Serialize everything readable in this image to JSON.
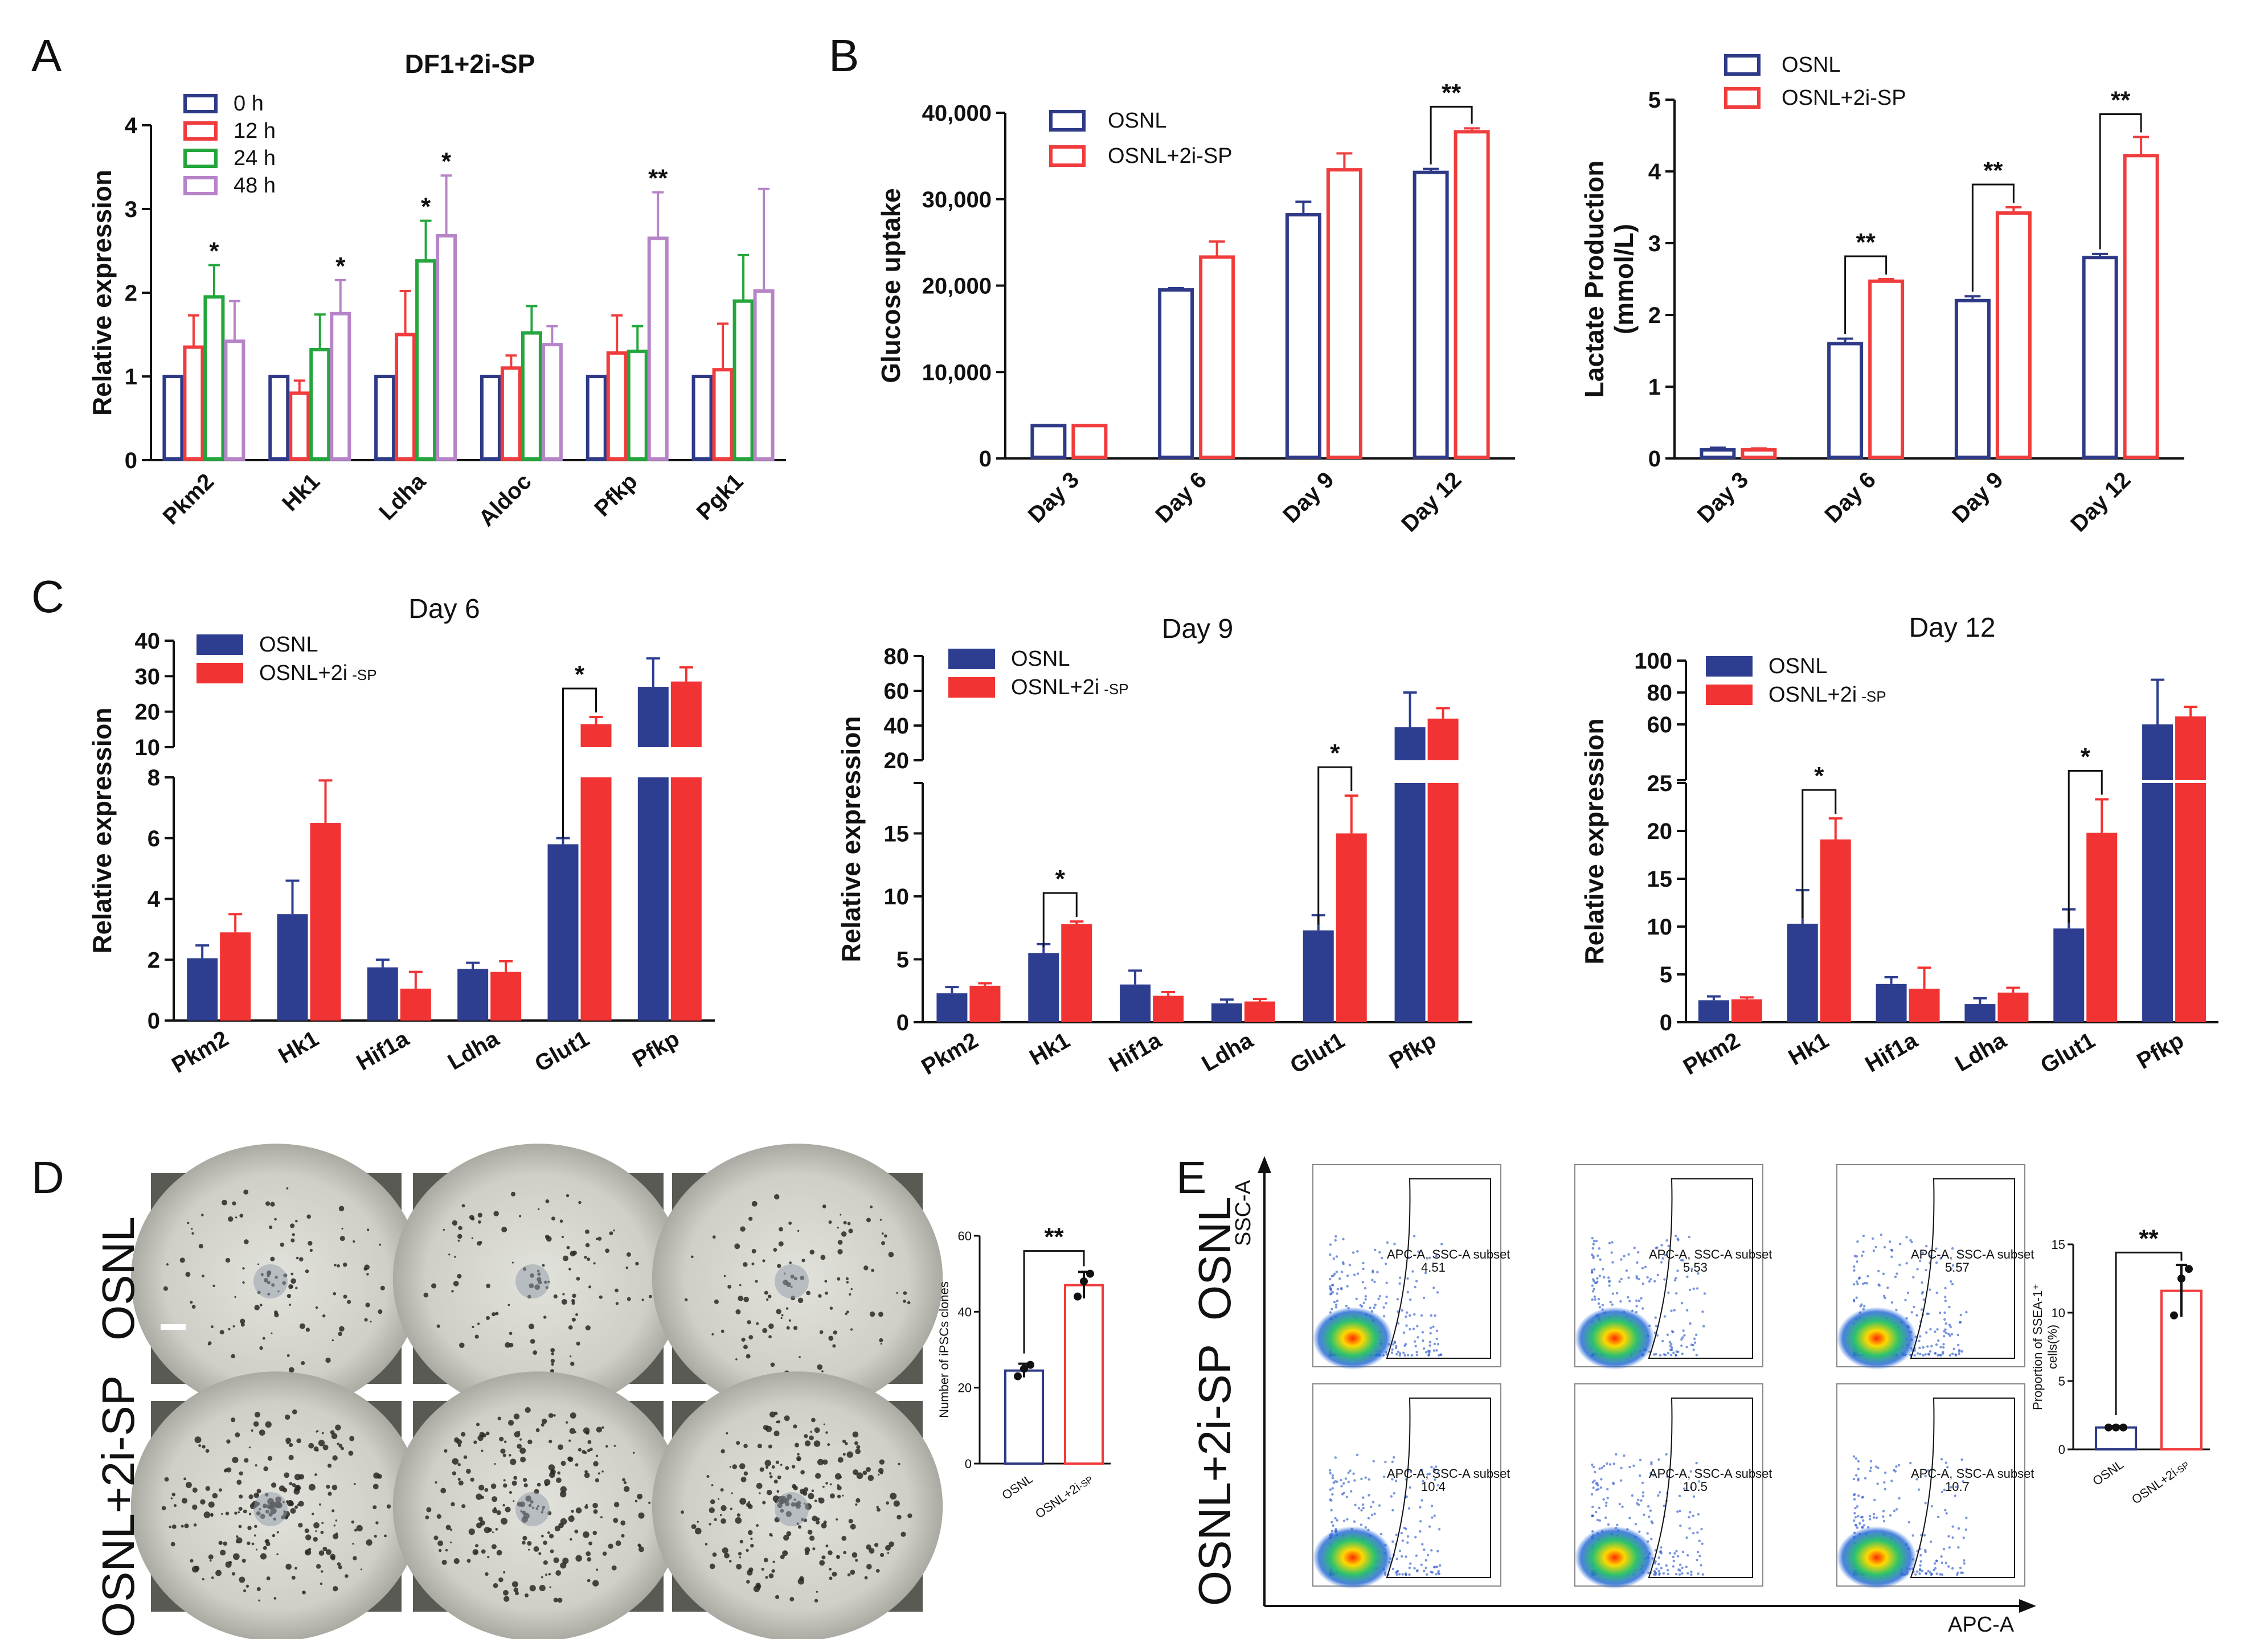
{
  "figure": {
    "panel_labels": [
      "A",
      "B",
      "C",
      "D",
      "E"
    ],
    "colors": {
      "blue": "#2e3a87",
      "red": "#f03c3c",
      "green": "#23a63c",
      "purple": "#b784c8",
      "bar_blue": "#2d3e91",
      "bar_red": "#f23333"
    }
  },
  "chart_data": [
    {
      "id": "A",
      "type": "bar",
      "title": "DF1+2i-SP",
      "ylabel": "Relative expression",
      "ylim": [
        0,
        4
      ],
      "yticks": [
        "0",
        "1",
        "2",
        "3",
        "4"
      ],
      "categories": [
        "Pkm2",
        "Hk1",
        "Ldha",
        "Aldoc",
        "Pfkp",
        "Pgk1"
      ],
      "series": [
        {
          "name": "0 h",
          "values": [
            1,
            1,
            1,
            1,
            1,
            1
          ],
          "errors": [
            0,
            0,
            0,
            0,
            0,
            0
          ],
          "style": "outline",
          "color": "#2e3a87"
        },
        {
          "name": "12 h",
          "values": [
            1.35,
            0.8,
            1.5,
            1.1,
            1.28,
            1.08
          ],
          "errors": [
            0.38,
            0.15,
            0.52,
            0.15,
            0.45,
            0.55
          ],
          "style": "outline",
          "color": "#f03c3c"
        },
        {
          "name": "24 h",
          "values": [
            1.95,
            1.32,
            2.38,
            1.52,
            1.3,
            1.9
          ],
          "errors": [
            0.38,
            0.42,
            0.48,
            0.32,
            0.3,
            0.55
          ],
          "style": "outline",
          "color": "#23a63c"
        },
        {
          "name": "48 h",
          "values": [
            1.42,
            1.75,
            2.68,
            1.38,
            2.65,
            2.02
          ],
          "errors": [
            0.48,
            0.4,
            0.72,
            0.22,
            0.55,
            1.22
          ],
          "style": "outline",
          "color": "#b784c8"
        }
      ],
      "annotations": [
        {
          "text": "*",
          "category": 0,
          "series": 2
        },
        {
          "text": "*",
          "category": 1,
          "series": 3
        },
        {
          "text": "*",
          "category": 2,
          "series": 2
        },
        {
          "text": "*",
          "category": 2,
          "series": 3
        },
        {
          "text": "**",
          "category": 4,
          "series": 3
        }
      ]
    },
    {
      "id": "B1",
      "type": "bar",
      "ylabel": "Glucose uptake",
      "ylim": [
        0,
        40000
      ],
      "yticks": [
        "0",
        "10,000",
        "20,000",
        "30,000",
        "40,000"
      ],
      "categories": [
        "Day 3",
        "Day 6",
        "Day 9",
        "Day 12"
      ],
      "series": [
        {
          "name": "OSNL",
          "values": [
            3800,
            19500,
            28200,
            33100
          ],
          "errors": [
            0,
            200,
            1500,
            400
          ],
          "style": "outline",
          "color": "#2e3a87"
        },
        {
          "name": "OSNL+2i-SP",
          "values": [
            3800,
            23300,
            33400,
            37800
          ],
          "errors": [
            0,
            1800,
            1900,
            400
          ],
          "style": "outline",
          "color": "#f03c3c"
        }
      ],
      "brackets": [
        {
          "category": 3,
          "text": "**"
        }
      ]
    },
    {
      "id": "B2",
      "type": "bar",
      "ylabel": "Lactate Production",
      "ylabel2": "(mmol/L)",
      "ylim": [
        0,
        5
      ],
      "yticks": [
        "0",
        "1",
        "2",
        "3",
        "4",
        "5"
      ],
      "categories": [
        "Day 3",
        "Day 6",
        "Day 9",
        "Day 12"
      ],
      "series": [
        {
          "name": "OSNL",
          "values": [
            0.12,
            1.6,
            2.2,
            2.8
          ],
          "errors": [
            0.03,
            0.07,
            0.06,
            0.05
          ],
          "style": "outline",
          "color": "#2e3a87"
        },
        {
          "name": "OSNL+2i-SP",
          "values": [
            0.12,
            2.47,
            3.42,
            4.22
          ],
          "errors": [
            0.02,
            0.03,
            0.08,
            0.26
          ],
          "style": "outline",
          "color": "#f03c3c"
        }
      ],
      "brackets": [
        {
          "category": 1,
          "text": "**"
        },
        {
          "category": 2,
          "text": "**"
        },
        {
          "category": 3,
          "text": "**"
        }
      ]
    },
    {
      "id": "C1",
      "type": "bar",
      "title": "Day 6",
      "ylabel": "Relative expression",
      "broken_axis": {
        "lower": [
          0,
          8
        ],
        "upper": [
          10,
          40
        ]
      },
      "lower_ticks": [
        "0",
        "2",
        "4",
        "6",
        "8"
      ],
      "upper_ticks": [
        "10",
        "20",
        "30",
        "40"
      ],
      "categories": [
        "Pkm2",
        "Hk1",
        "Hif1a",
        "Ldha",
        "Glut1",
        "Pfkp"
      ],
      "series": [
        {
          "name": "OSNL",
          "values": [
            2.05,
            3.5,
            1.75,
            1.7,
            5.8,
            27
          ],
          "errors": [
            0.42,
            1.1,
            0.25,
            0.2,
            0.2,
            8
          ],
          "style": "filled",
          "color": "#2d3e91"
        },
        {
          "name": "OSNL+2i",
          "name_suffix": "-SP",
          "values": [
            2.9,
            6.5,
            1.05,
            1.6,
            16.5,
            28.5
          ],
          "errors": [
            0.6,
            1.4,
            0.55,
            0.35,
            2,
            4
          ],
          "style": "filled",
          "color": "#f23333"
        }
      ],
      "brackets": [
        {
          "category": 4,
          "text": "*"
        }
      ]
    },
    {
      "id": "C2",
      "type": "bar",
      "title": "Day 9",
      "ylabel": "Relative expression",
      "broken_axis": {
        "lower": [
          0,
          19
        ],
        "upper": [
          20,
          80
        ]
      },
      "lower_ticks": [
        "0",
        "5",
        "10",
        "15"
      ],
      "upper_ticks": [
        "20",
        "40",
        "60",
        "80"
      ],
      "categories": [
        "Pkm2",
        "Hk1",
        "Hif1a",
        "Ldha",
        "Glut1",
        "Pfkp"
      ],
      "series": [
        {
          "name": "OSNL",
          "values": [
            2.3,
            5.5,
            3.0,
            1.5,
            7.3,
            39
          ],
          "errors": [
            0.5,
            0.7,
            1.1,
            0.3,
            1.2,
            20
          ],
          "style": "filled",
          "color": "#2d3e91"
        },
        {
          "name": "OSNL+2i",
          "name_suffix": "-SP",
          "values": [
            2.9,
            7.8,
            2.1,
            1.65,
            15,
            44
          ],
          "errors": [
            0.2,
            0.2,
            0.3,
            0.2,
            3,
            6
          ],
          "style": "filled",
          "color": "#f23333"
        }
      ],
      "brackets": [
        {
          "category": 1,
          "text": "*"
        },
        {
          "category": 4,
          "text": "*"
        }
      ]
    },
    {
      "id": "C3",
      "type": "bar",
      "title": "Day 12",
      "ylabel": "Relative expression",
      "broken_axis": {
        "lower": [
          0,
          25
        ],
        "upper": [
          25,
          100
        ]
      },
      "lower_ticks": [
        "0",
        "5",
        "10",
        "15",
        "20",
        "25"
      ],
      "upper_ticks": [
        "60",
        "80",
        "100"
      ],
      "categories": [
        "Pkm2",
        "Hk1",
        "Hif1a",
        "Ldha",
        "Glut1",
        "Pfkp"
      ],
      "series": [
        {
          "name": "OSNL",
          "values": [
            2.3,
            10.3,
            4.0,
            1.9,
            9.8,
            60
          ],
          "errors": [
            0.4,
            3.5,
            0.7,
            0.6,
            2,
            28
          ],
          "style": "filled",
          "color": "#2d3e91"
        },
        {
          "name": "OSNL+2i",
          "name_suffix": "-SP",
          "values": [
            2.4,
            19.1,
            3.5,
            3.1,
            19.8,
            65
          ],
          "errors": [
            0.2,
            2.2,
            2.2,
            0.5,
            3.5,
            6
          ],
          "style": "filled",
          "color": "#f23333"
        }
      ],
      "brackets": [
        {
          "category": 1,
          "text": "*"
        },
        {
          "category": 4,
          "text": "*"
        }
      ]
    },
    {
      "id": "D",
      "type": "bar",
      "ylabel": "Number of iPSCs clones",
      "ylim": [
        0,
        60
      ],
      "yticks": [
        "0",
        "20",
        "40",
        "60"
      ],
      "categories": [
        "OSNL",
        "OSNL+2i-SP"
      ],
      "cat_main": [
        "OSNL",
        "OSNL+2i"
      ],
      "cat_sub": [
        "",
        "-SP"
      ],
      "values": [
        24.5,
        47
      ],
      "errors": [
        1.8,
        3.5
      ],
      "points": [
        [
          23,
          25,
          26
        ],
        [
          44,
          48,
          50
        ]
      ],
      "colors": [
        "#2e3a87",
        "#f03c3c"
      ],
      "bracket": "**",
      "row_labels": [
        "OSNL",
        "OSNL+2i-SP"
      ]
    },
    {
      "id": "E",
      "type": "bar",
      "ylabel": "Proportion of SSEA-1⁺",
      "ylabel2": "cells(%)",
      "ylim": [
        0,
        15
      ],
      "yticks": [
        "0",
        "5",
        "10",
        "15"
      ],
      "categories": [
        "OSNL",
        "OSNL+2i-SP"
      ],
      "cat_main": [
        "OSNL",
        "OSNL+2i"
      ],
      "cat_sub": [
        "",
        "-SP"
      ],
      "values": [
        1.6,
        11.6
      ],
      "errors": [
        0.1,
        1.9
      ],
      "points": [
        [
          1.6,
          1.6,
          1.6
        ],
        [
          9.8,
          12.5,
          13.2
        ]
      ],
      "colors": [
        "#2e3a87",
        "#f03c3c"
      ],
      "bracket": "**",
      "row_labels": [
        "OSNL",
        "OSNL+2i-SP"
      ],
      "flow_xlabel": "APC-A",
      "flow_ylabel": "SSC-A",
      "gate_label": "APC-A, SSC-A subset",
      "gate_values": [
        [
          "4.51",
          "5.53",
          "5.57"
        ],
        [
          "10.4",
          "10.5",
          "10.7"
        ]
      ]
    }
  ]
}
